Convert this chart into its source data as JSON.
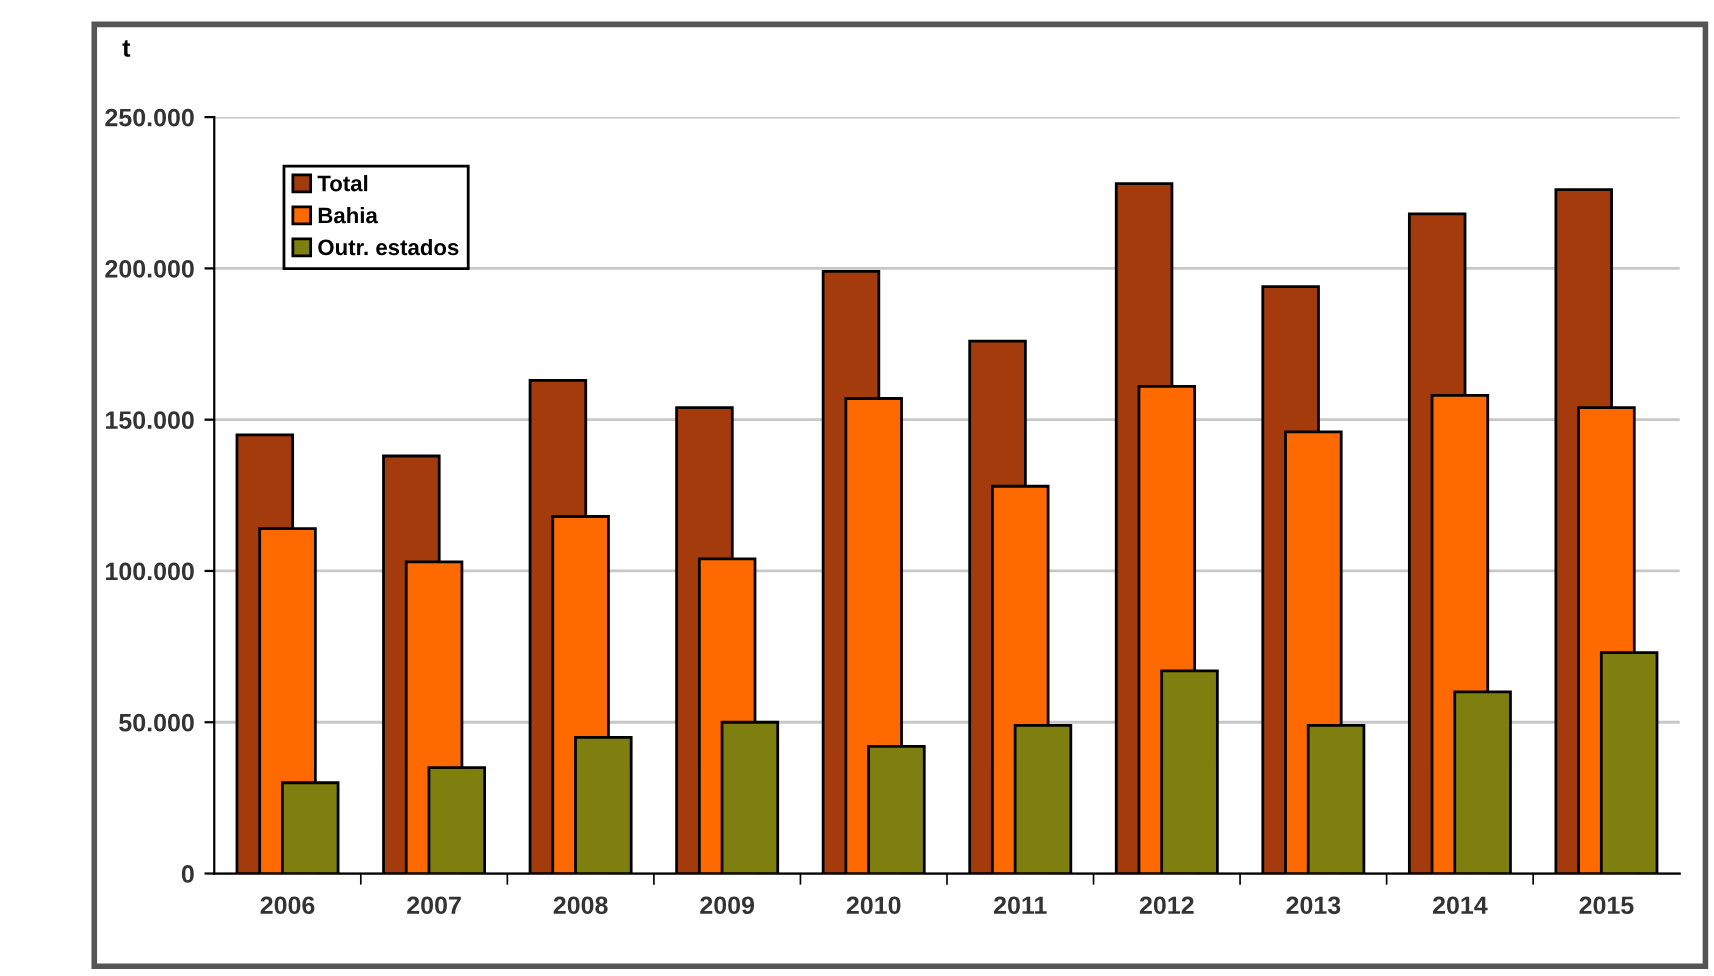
{
  "chart_data": {
    "type": "bar",
    "ylabel": "t",
    "categories": [
      "2006",
      "2007",
      "2008",
      "2009",
      "2010",
      "2011",
      "2012",
      "2013",
      "2014",
      "2015"
    ],
    "series": [
      {
        "name": "Total",
        "color": "#a33b0c",
        "values": [
          145000,
          138000,
          163000,
          154000,
          199000,
          176000,
          228000,
          194000,
          218000,
          226000
        ]
      },
      {
        "name": "Bahia",
        "color": "#ff6a00",
        "values": [
          114000,
          103000,
          118000,
          104000,
          157000,
          128000,
          161000,
          146000,
          158000,
          154000
        ]
      },
      {
        "name": "Outr. estados",
        "color": "#7f7f10",
        "values": [
          30000,
          35000,
          45000,
          50000,
          42000,
          49000,
          67000,
          49000,
          60000,
          73000
        ]
      }
    ],
    "ylim": [
      0,
      250000
    ],
    "yticks": [
      {
        "value": 0,
        "label": "0"
      },
      {
        "value": 50000,
        "label": "50.000"
      },
      {
        "value": 100000,
        "label": "100.000"
      },
      {
        "value": 150000,
        "label": "150.000"
      },
      {
        "value": 200000,
        "label": "200.000"
      },
      {
        "value": 250000,
        "label": "250.000"
      }
    ],
    "grid": "y",
    "legend": "top left"
  }
}
